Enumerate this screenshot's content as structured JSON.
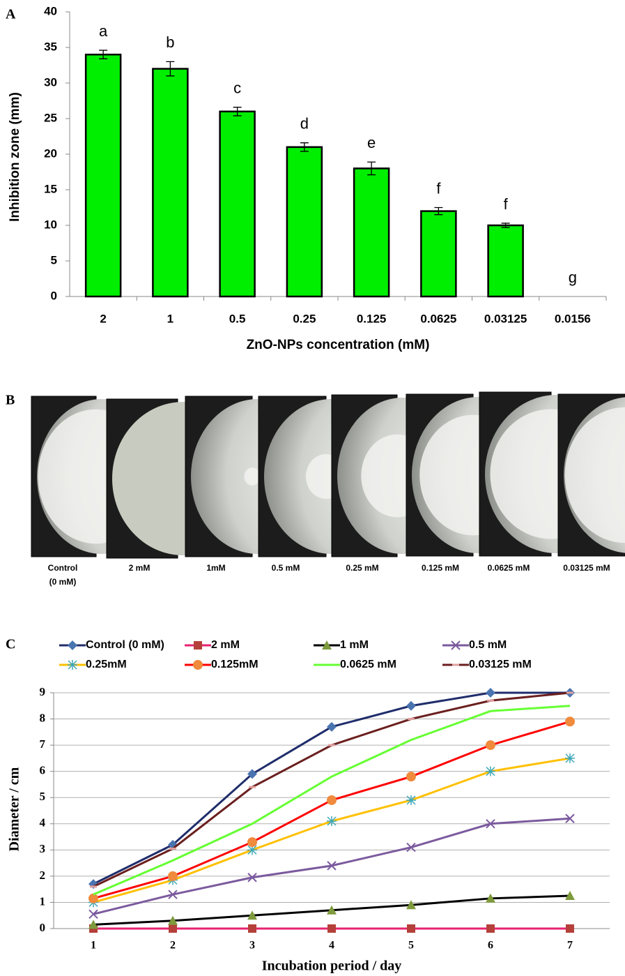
{
  "chart_data": [
    {
      "type": "bar",
      "panel_label": "A",
      "x_label": "ZnO-NPs concentration (mM)",
      "y_label": "Inhibition zone (mm)",
      "categories": [
        "2",
        "1",
        "0.5",
        "0.25",
        "0.125",
        "0.0625",
        "0.03125",
        "0.0156"
      ],
      "values": [
        34,
        32,
        26,
        21,
        18,
        12,
        10,
        0
      ],
      "errors": [
        0.6,
        1,
        0.6,
        0.6,
        0.9,
        0.5,
        0.3,
        null
      ],
      "annotations": [
        "a",
        "b",
        "c",
        "d",
        "e",
        "f",
        "f",
        "g"
      ],
      "color": "#00ee00",
      "ylim": [
        0,
        40
      ],
      "yticks": [
        0,
        5,
        10,
        15,
        20,
        25,
        30,
        35,
        40
      ],
      "grid": false
    },
    {
      "type": "line",
      "panel_label": "C",
      "x_label": "Incubation period / day",
      "y_label": "Diameter / cm",
      "x": [
        1,
        2,
        3,
        4,
        5,
        6,
        7
      ],
      "xlim": [
        0.5,
        7.5
      ],
      "xticks": [
        1,
        2,
        3,
        4,
        5,
        6,
        7
      ],
      "ylim": [
        0,
        9
      ],
      "yticks": [
        0,
        1,
        2,
        3,
        4,
        5,
        6,
        7,
        8,
        9
      ],
      "grid": true,
      "legend": "top",
      "series": [
        {
          "name": "Control (0 mM)",
          "color": "#1f2d6b",
          "marker": "diamond",
          "marker_color": "#4a74b0",
          "values": [
            1.7,
            3.2,
            5.9,
            7.7,
            8.5,
            9,
            9
          ]
        },
        {
          "name": "2 mM",
          "color": "#e8226f",
          "marker": "square",
          "marker_color": "#b5403a",
          "values": [
            0,
            0,
            0,
            0,
            0,
            0,
            0
          ]
        },
        {
          "name": "1 mM",
          "color": "#000000",
          "marker": "triangle",
          "marker_color": "#7e9a3c",
          "values": [
            0.15,
            0.3,
            0.5,
            0.7,
            0.9,
            1.15,
            1.25
          ]
        },
        {
          "name": "0.5 mM",
          "color": "#7b5a9e",
          "marker": "x",
          "marker_color": "#7b5a9e",
          "values": [
            0.55,
            1.3,
            1.95,
            2.4,
            3.1,
            4,
            4.2
          ]
        },
        {
          "name": "0.25mM",
          "color": "#ffc000",
          "marker": "asterisk",
          "marker_color": "#3fa7b8",
          "values": [
            1,
            1.85,
            3,
            4.1,
            4.9,
            6,
            6.5
          ]
        },
        {
          "name": "0.125mM",
          "color": "#ff0000",
          "marker": "circle",
          "marker_color": "#f08a3c",
          "values": [
            1.15,
            2,
            3.3,
            4.9,
            5.8,
            7,
            7.9
          ]
        },
        {
          "name": "0.0625 mM",
          "color": "#66ff33",
          "marker": "none",
          "marker_color": "#66ff33",
          "values": [
            1.3,
            2.6,
            4,
            5.8,
            7.2,
            8.3,
            8.5
          ]
        },
        {
          "name": "0.03125 mM",
          "color": "#6b1f1f",
          "marker": "dash",
          "marker_color": "#e0a0a0",
          "values": [
            1.6,
            3.05,
            5.4,
            7,
            8,
            8.7,
            9
          ]
        }
      ]
    }
  ],
  "photos": {
    "panel_label": "B",
    "labels": [
      [
        "Control",
        "(0 mM)"
      ],
      [
        "2 mM"
      ],
      [
        "1mM"
      ],
      [
        "0.5 mM"
      ],
      [
        "0.25 mM"
      ],
      [
        "0.125 mM"
      ],
      [
        "0.0625 mM"
      ],
      [
        "0.03125 mM"
      ]
    ]
  }
}
